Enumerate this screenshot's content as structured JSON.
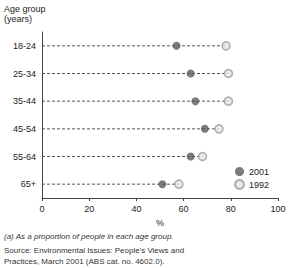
{
  "chart_data": {
    "type": "dot",
    "orientation": "horizontal",
    "ylabel": "Age group\n(years)",
    "xlabel": "%",
    "categories": [
      "18-24",
      "25-34",
      "35-44",
      "45-54",
      "55-64",
      "65+"
    ],
    "series": [
      {
        "name": "2001",
        "color": "#5a5a5a",
        "marker": "filled",
        "values": [
          57,
          63,
          65,
          69,
          63,
          51
        ]
      },
      {
        "name": "1992",
        "color": "#9a9a9a",
        "marker": "open",
        "values": [
          78,
          79,
          79,
          75,
          68,
          58
        ]
      }
    ],
    "xlim": [
      0,
      100
    ],
    "xticks": [
      0,
      20,
      40,
      60,
      80,
      100
    ],
    "grid": false,
    "legend": "lower right",
    "annotations": [
      "(a) As a proportion of people in each age group.",
      "Source: Environmental Issues: People's Views and",
      "Practices, March 2001 (ABS cat. no. 4602.0)."
    ]
  }
}
